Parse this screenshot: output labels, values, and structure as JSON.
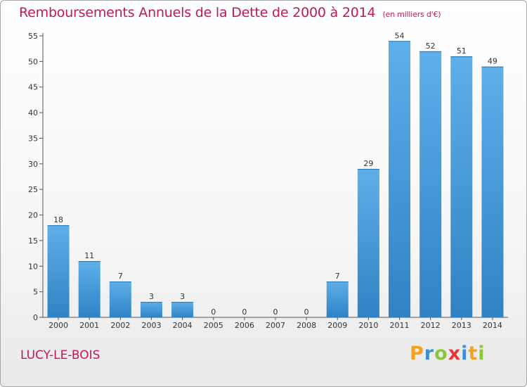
{
  "title": "Remboursements Annuels de la Dette de 2000 à 2014",
  "subtitle": "(en milliers d'€)",
  "place": "LUCY-LE-BOIS",
  "logo": {
    "letters": [
      "P",
      "r",
      "o",
      "x",
      "i",
      "t",
      "i"
    ],
    "colors": [
      "#f4a21a",
      "#3b8fd6",
      "#8cc63f",
      "#e53935",
      "#3b8fd6",
      "#f4a21a",
      "#8cc63f"
    ]
  },
  "colors": {
    "bar_light": "#5eb0ea",
    "bar_dark": "#2f82c4",
    "title": "#c2185b"
  },
  "chart_data": {
    "type": "bar",
    "title": "Remboursements Annuels de la Dette de 2000 à 2014",
    "subtitle": "(en milliers d'€)",
    "categories": [
      "2000",
      "2001",
      "2002",
      "2003",
      "2004",
      "2005",
      "2006",
      "2007",
      "2008",
      "2009",
      "2010",
      "2011",
      "2012",
      "2013",
      "2014"
    ],
    "values": [
      18,
      11,
      7,
      3,
      3,
      0,
      0,
      0,
      0,
      7,
      29,
      54,
      52,
      51,
      49
    ],
    "value_labels": [
      "18",
      "11",
      "7",
      "3",
      "3",
      "0",
      "0",
      "0",
      "0",
      "7",
      "29",
      "54",
      "52",
      "51",
      "49"
    ],
    "ylim": [
      0,
      55
    ],
    "yticks": [
      "0",
      "5",
      "10",
      "15",
      "20",
      "25",
      "30",
      "35",
      "40",
      "45",
      "50",
      "55"
    ],
    "grid": false,
    "legend": "none"
  }
}
